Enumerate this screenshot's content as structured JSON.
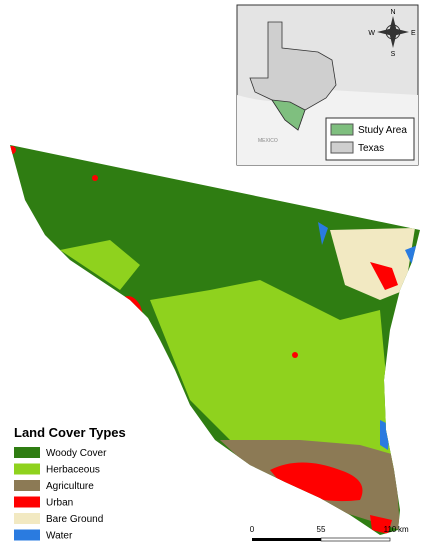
{
  "legend": {
    "title": "Land Cover Types",
    "items": [
      {
        "label": "Woody Cover",
        "color": "#2f7d12"
      },
      {
        "label": "Herbaceous",
        "color": "#8fd21e"
      },
      {
        "label": "Agriculture",
        "color": "#8c7a55"
      },
      {
        "label": "Urban",
        "color": "#ff0000"
      },
      {
        "label": "Bare Ground",
        "color": "#f2e9c2"
      },
      {
        "label": "Water",
        "color": "#2a7be0"
      }
    ]
  },
  "inset": {
    "country_label": "MEXICO",
    "compass": {
      "n": "N",
      "e": "E",
      "s": "S",
      "w": "W"
    },
    "legend": [
      {
        "label": "Study Area",
        "color": "#7fbf7f"
      },
      {
        "label": "Texas",
        "color": "#cfcfcf"
      }
    ]
  },
  "scale_bar": {
    "ticks": [
      "0",
      "55",
      "110"
    ],
    "unit": "km"
  }
}
